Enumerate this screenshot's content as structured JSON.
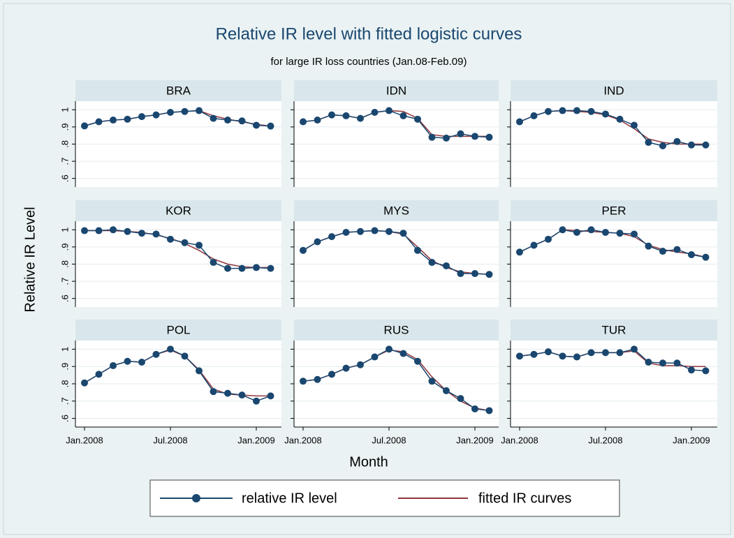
{
  "title": "Relative IR level with fitted logistic curves",
  "subtitle": "for large IR loss countries (Jan.08-Feb.09)",
  "x_label": "Month",
  "y_label": "Relative IR Level",
  "chart_data": [
    {
      "type": "line",
      "title": "BRA",
      "categories": [
        "Jan.2008",
        null,
        null,
        null,
        null,
        null,
        "Jul.2008",
        null,
        null,
        null,
        null,
        null,
        "Jan.2009",
        null
      ],
      "series": [
        {
          "name": "relative IR level",
          "color": "#1a476f",
          "values": [
            0.906,
            0.93,
            0.94,
            0.945,
            0.96,
            0.97,
            0.985,
            0.99,
            0.995,
            0.95,
            0.94,
            0.935,
            0.91,
            0.905
          ]
        },
        {
          "name": "fitted IR curves",
          "color": "#90353b",
          "values": [
            0.906,
            0.93,
            0.94,
            0.945,
            0.96,
            0.97,
            0.985,
            0.99,
            0.995,
            0.965,
            0.945,
            0.93,
            0.915,
            0.905
          ]
        }
      ],
      "ylim": [
        0.55,
        1.05
      ],
      "yticks": [
        {
          "value": 0.6,
          "label": ".6"
        },
        {
          "value": 0.7,
          "label": ".7"
        },
        {
          "value": 0.8,
          "label": ".8"
        },
        {
          "value": 0.9,
          "label": ".9"
        },
        1
      ],
      "grid": true
    },
    {
      "type": "line",
      "title": "IDN",
      "categories": [
        "Jan.2008",
        null,
        null,
        null,
        null,
        null,
        "Jul.2008",
        null,
        null,
        null,
        null,
        null,
        "Jan.2009",
        null
      ],
      "series": [
        {
          "name": "relative IR level",
          "color": "#1a476f",
          "values": [
            0.93,
            0.94,
            0.97,
            0.965,
            0.95,
            0.985,
            0.995,
            0.965,
            0.945,
            0.84,
            0.835,
            0.86,
            0.845,
            0.84
          ]
        },
        {
          "name": "fitted IR curves",
          "color": "#90353b",
          "values": [
            0.93,
            0.94,
            0.97,
            0.965,
            0.95,
            0.985,
            0.995,
            0.99,
            0.95,
            0.855,
            0.845,
            0.845,
            0.845,
            0.845
          ]
        }
      ],
      "ylim": [
        0.55,
        1.05
      ],
      "yticks": [
        {
          "value": 0.6,
          "label": ".6"
        },
        {
          "value": 0.7,
          "label": ".7"
        },
        {
          "value": 0.8,
          "label": ".8"
        },
        {
          "value": 0.9,
          "label": ".9"
        },
        1
      ],
      "grid": true
    },
    {
      "type": "line",
      "title": "IND",
      "categories": [
        "Jan.2008",
        null,
        null,
        null,
        null,
        null,
        "Jul.2008",
        null,
        null,
        null,
        null,
        null,
        "Jan.2009",
        null
      ],
      "series": [
        {
          "name": "relative IR level",
          "color": "#1a476f",
          "values": [
            0.93,
            0.965,
            0.99,
            0.995,
            0.995,
            0.99,
            0.975,
            0.945,
            0.91,
            0.81,
            0.79,
            0.815,
            0.795,
            0.795
          ]
        },
        {
          "name": "fitted IR curves",
          "color": "#90353b",
          "values": [
            0.93,
            0.965,
            0.99,
            0.995,
            0.99,
            0.985,
            0.97,
            0.94,
            0.89,
            0.83,
            0.81,
            0.8,
            0.8,
            0.8
          ]
        }
      ],
      "ylim": [
        0.55,
        1.05
      ],
      "yticks": [
        {
          "value": 0.6,
          "label": ".6"
        },
        {
          "value": 0.7,
          "label": ".7"
        },
        {
          "value": 0.8,
          "label": ".8"
        },
        {
          "value": 0.9,
          "label": ".9"
        },
        1
      ],
      "grid": true
    },
    {
      "type": "line",
      "title": "KOR",
      "categories": [
        "Jan.2008",
        null,
        null,
        null,
        null,
        null,
        "Jul.2008",
        null,
        null,
        null,
        null,
        null,
        "Jan.2009",
        null
      ],
      "series": [
        {
          "name": "relative IR level",
          "color": "#1a476f",
          "values": [
            0.995,
            0.995,
            1.0,
            0.99,
            0.98,
            0.975,
            0.945,
            0.925,
            0.91,
            0.81,
            0.775,
            0.775,
            0.78,
            0.775
          ]
        },
        {
          "name": "fitted IR curves",
          "color": "#90353b",
          "values": [
            0.995,
            0.995,
            0.995,
            0.99,
            0.985,
            0.97,
            0.95,
            0.92,
            0.88,
            0.83,
            0.8,
            0.785,
            0.78,
            0.78
          ]
        }
      ],
      "ylim": [
        0.55,
        1.05
      ],
      "yticks": [
        {
          "value": 0.6,
          "label": ".6"
        },
        {
          "value": 0.7,
          "label": ".7"
        },
        {
          "value": 0.8,
          "label": ".8"
        },
        {
          "value": 0.9,
          "label": ".9"
        },
        1
      ],
      "grid": true
    },
    {
      "type": "line",
      "title": "MYS",
      "categories": [
        "Jan.2008",
        null,
        null,
        null,
        null,
        null,
        "Jul.2008",
        null,
        null,
        null,
        null,
        null,
        "Jan.2009",
        null
      ],
      "series": [
        {
          "name": "relative IR level",
          "color": "#1a476f",
          "values": [
            0.88,
            0.93,
            0.96,
            0.985,
            0.99,
            0.995,
            0.99,
            0.98,
            0.88,
            0.81,
            0.79,
            0.745,
            0.745,
            0.74
          ]
        },
        {
          "name": "fitted IR curves",
          "color": "#90353b",
          "values": [
            0.88,
            0.93,
            0.96,
            0.985,
            0.99,
            0.995,
            0.99,
            0.975,
            0.9,
            0.82,
            0.78,
            0.755,
            0.745,
            0.74
          ]
        }
      ],
      "ylim": [
        0.55,
        1.05
      ],
      "yticks": [
        {
          "value": 0.6,
          "label": ".6"
        },
        {
          "value": 0.7,
          "label": ".7"
        },
        {
          "value": 0.8,
          "label": ".8"
        },
        {
          "value": 0.9,
          "label": ".9"
        },
        1
      ],
      "grid": true
    },
    {
      "type": "line",
      "title": "PER",
      "categories": [
        "Jan.2008",
        null,
        null,
        null,
        null,
        null,
        "Jul.2008",
        null,
        null,
        null,
        null,
        null,
        "Jan.2009",
        null
      ],
      "series": [
        {
          "name": "relative IR level",
          "color": "#1a476f",
          "values": [
            0.87,
            0.91,
            0.945,
            1.0,
            0.985,
            1.0,
            0.985,
            0.98,
            0.975,
            0.905,
            0.875,
            0.885,
            0.855,
            0.84
          ]
        },
        {
          "name": "fitted IR curves",
          "color": "#90353b",
          "values": [
            0.87,
            0.91,
            0.945,
            1.0,
            0.995,
            0.99,
            0.985,
            0.98,
            0.96,
            0.91,
            0.885,
            0.87,
            0.86,
            0.84
          ]
        }
      ],
      "ylim": [
        0.55,
        1.05
      ],
      "yticks": [
        {
          "value": 0.6,
          "label": ".6"
        },
        {
          "value": 0.7,
          "label": ".7"
        },
        {
          "value": 0.8,
          "label": ".8"
        },
        {
          "value": 0.9,
          "label": ".9"
        },
        1
      ],
      "grid": true
    },
    {
      "type": "line",
      "title": "POL",
      "categories": [
        "Jan.2008",
        null,
        null,
        null,
        null,
        null,
        "Jul.2008",
        null,
        null,
        null,
        null,
        null,
        "Jan.2009",
        null
      ],
      "series": [
        {
          "name": "relative IR level",
          "color": "#1a476f",
          "values": [
            0.805,
            0.855,
            0.905,
            0.93,
            0.925,
            0.97,
            1.0,
            0.96,
            0.875,
            0.755,
            0.745,
            0.735,
            0.7,
            0.73
          ]
        },
        {
          "name": "fitted IR curves",
          "color": "#90353b",
          "values": [
            0.805,
            0.855,
            0.905,
            0.93,
            0.925,
            0.97,
            0.995,
            0.96,
            0.88,
            0.77,
            0.74,
            0.735,
            0.73,
            0.73
          ]
        }
      ],
      "ylim": [
        0.55,
        1.05
      ],
      "yticks": [
        {
          "value": 0.6,
          "label": ".6"
        },
        {
          "value": 0.7,
          "label": ".7"
        },
        {
          "value": 0.8,
          "label": ".8"
        },
        {
          "value": 0.9,
          "label": ".9"
        },
        1
      ],
      "grid": true
    },
    {
      "type": "line",
      "title": "RUS",
      "categories": [
        "Jan.2008",
        null,
        null,
        null,
        null,
        null,
        "Jul.2008",
        null,
        null,
        null,
        null,
        null,
        "Jan.2009",
        null
      ],
      "series": [
        {
          "name": "relative IR level",
          "color": "#1a476f",
          "values": [
            0.815,
            0.825,
            0.855,
            0.89,
            0.91,
            0.955,
            1.0,
            0.975,
            0.93,
            0.815,
            0.76,
            0.715,
            0.655,
            0.645
          ]
        },
        {
          "name": "fitted IR curves",
          "color": "#90353b",
          "values": [
            0.815,
            0.825,
            0.855,
            0.89,
            0.91,
            0.955,
            0.995,
            0.985,
            0.94,
            0.84,
            0.76,
            0.7,
            0.66,
            0.645
          ]
        }
      ],
      "ylim": [
        0.55,
        1.05
      ],
      "yticks": [
        {
          "value": 0.6,
          "label": ".6"
        },
        {
          "value": 0.7,
          "label": ".7"
        },
        {
          "value": 0.8,
          "label": ".8"
        },
        {
          "value": 0.9,
          "label": ".9"
        },
        1
      ],
      "grid": true
    },
    {
      "type": "line",
      "title": "TUR",
      "categories": [
        "Jan.2008",
        null,
        null,
        null,
        null,
        null,
        "Jul.2008",
        null,
        null,
        null,
        null,
        null,
        "Jan.2009",
        null
      ],
      "series": [
        {
          "name": "relative IR level",
          "color": "#1a476f",
          "values": [
            0.96,
            0.97,
            0.985,
            0.96,
            0.955,
            0.98,
            0.98,
            0.98,
            1.0,
            0.925,
            0.92,
            0.92,
            0.88,
            0.875
          ]
        },
        {
          "name": "fitted IR curves",
          "color": "#90353b",
          "values": [
            0.96,
            0.97,
            0.985,
            0.96,
            0.955,
            0.98,
            0.98,
            0.98,
            0.99,
            0.92,
            0.905,
            0.905,
            0.9,
            0.9
          ]
        }
      ],
      "ylim": [
        0.55,
        1.05
      ],
      "yticks": [
        {
          "value": 0.6,
          "label": ".6"
        },
        {
          "value": 0.7,
          "label": ".7"
        },
        {
          "value": 0.8,
          "label": ".8"
        },
        {
          "value": 0.9,
          "label": ".9"
        },
        1
      ],
      "grid": true
    }
  ]
}
